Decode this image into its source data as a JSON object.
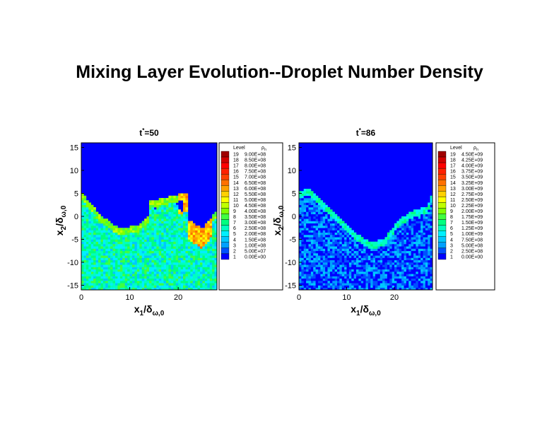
{
  "title": "Mixing Layer Evolution--Droplet Number Density",
  "colormap": [
    "#0000ff",
    "#0050ff",
    "#00a0ff",
    "#00c8ff",
    "#00f0ff",
    "#00ffc0",
    "#00ff80",
    "#40ff40",
    "#80ff00",
    "#c0ff00",
    "#ffff00",
    "#ffd000",
    "#ffa000",
    "#ff7000",
    "#ff4000",
    "#ff2000",
    "#ff0000",
    "#d00000",
    "#a00000"
  ],
  "chart_data": [
    {
      "type": "heatmap",
      "title_base": "t",
      "title_sup": "*",
      "title_rest": "=50",
      "xlabel": "x1/δω,0",
      "ylabel": "x2/δω,0",
      "xlim": [
        0,
        28
      ],
      "ylim": [
        -16,
        16
      ],
      "xticks": [
        "0",
        "10",
        "20"
      ],
      "xtick_values": [
        0,
        10,
        20
      ],
      "yticks": [
        "15",
        "10",
        "5",
        "0",
        "-5",
        "-10",
        "-15"
      ],
      "ytick_values": [
        15,
        10,
        5,
        0,
        -5,
        -10,
        -15
      ],
      "legend": {
        "header_level": "Level",
        "header_var": "ρ",
        "header_var_sub": "n",
        "levels": [
          "19",
          "18",
          "17",
          "16",
          "15",
          "14",
          "13",
          "12",
          "11",
          "10",
          "9",
          "8",
          "7",
          "6",
          "5",
          "4",
          "3",
          "2",
          "1"
        ],
        "values": [
          "9.00E+08",
          "8.50E+08",
          "8.00E+08",
          "7.50E+08",
          "7.00E+08",
          "6.50E+08",
          "6.00E+08",
          "5.50E+08",
          "5.00E+08",
          "4.50E+08",
          "4.00E+08",
          "3.50E+08",
          "3.00E+08",
          "2.50E+08",
          "2.00E+08",
          "1.50E+08",
          "1.00E+08",
          "5.00E+07",
          "0.00E+00"
        ]
      },
      "field": {
        "base_level": 6,
        "interface_x": [
          0,
          4,
          8,
          12,
          15,
          17,
          19,
          22,
          25,
          28
        ],
        "interface_y": [
          5,
          0,
          -3,
          -2,
          1,
          3,
          3,
          -1,
          -3,
          1
        ],
        "edge_level": 9,
        "rollup_x": [
          14,
          22
        ],
        "rollup_top_y": [
          3,
          5
        ],
        "hotspot_x": [
          20,
          27
        ],
        "hotspot_level": 11
      }
    },
    {
      "type": "heatmap",
      "title_base": "t",
      "title_sup": "*",
      "title_rest": "=86",
      "xlabel": "x1/δω,0",
      "ylabel": "x2/δω,0",
      "xlim": [
        0,
        28
      ],
      "ylim": [
        -16,
        16
      ],
      "xticks": [
        "0",
        "10",
        "20"
      ],
      "xtick_values": [
        0,
        10,
        20
      ],
      "yticks": [
        "15",
        "10",
        "5",
        "0",
        "-5",
        "-10",
        "-15"
      ],
      "ytick_values": [
        15,
        10,
        5,
        0,
        -5,
        -10,
        -15
      ],
      "legend": {
        "header_level": "Level",
        "header_var": "ρ",
        "header_var_sub": "n",
        "levels": [
          "19",
          "18",
          "17",
          "16",
          "15",
          "14",
          "13",
          "12",
          "11",
          "10",
          "9",
          "8",
          "7",
          "6",
          "5",
          "4",
          "3",
          "2",
          "1"
        ],
        "values": [
          "4.50E+09",
          "4.25E+09",
          "4.00E+09",
          "3.75E+09",
          "3.50E+09",
          "3.25E+09",
          "3.00E+09",
          "2.75E+09",
          "2.50E+09",
          "2.25E+09",
          "2.00E+09",
          "1.75E+09",
          "1.50E+09",
          "1.25E+09",
          "1.00E+09",
          "7.50E+08",
          "5.00E+08",
          "2.50E+08",
          "0.00E+00"
        ]
      },
      "field": {
        "base_level": 2,
        "interface_x": [
          0,
          2,
          4,
          8,
          12,
          15,
          18,
          21,
          24,
          27,
          28
        ],
        "interface_y": [
          5,
          6,
          4,
          0,
          -4,
          -6,
          -5,
          -1,
          1,
          2,
          5
        ],
        "edge_level": 6,
        "rollup_x": [],
        "rollup_top_y": [],
        "hotspot_x": [],
        "hotspot_level": 6
      }
    }
  ]
}
